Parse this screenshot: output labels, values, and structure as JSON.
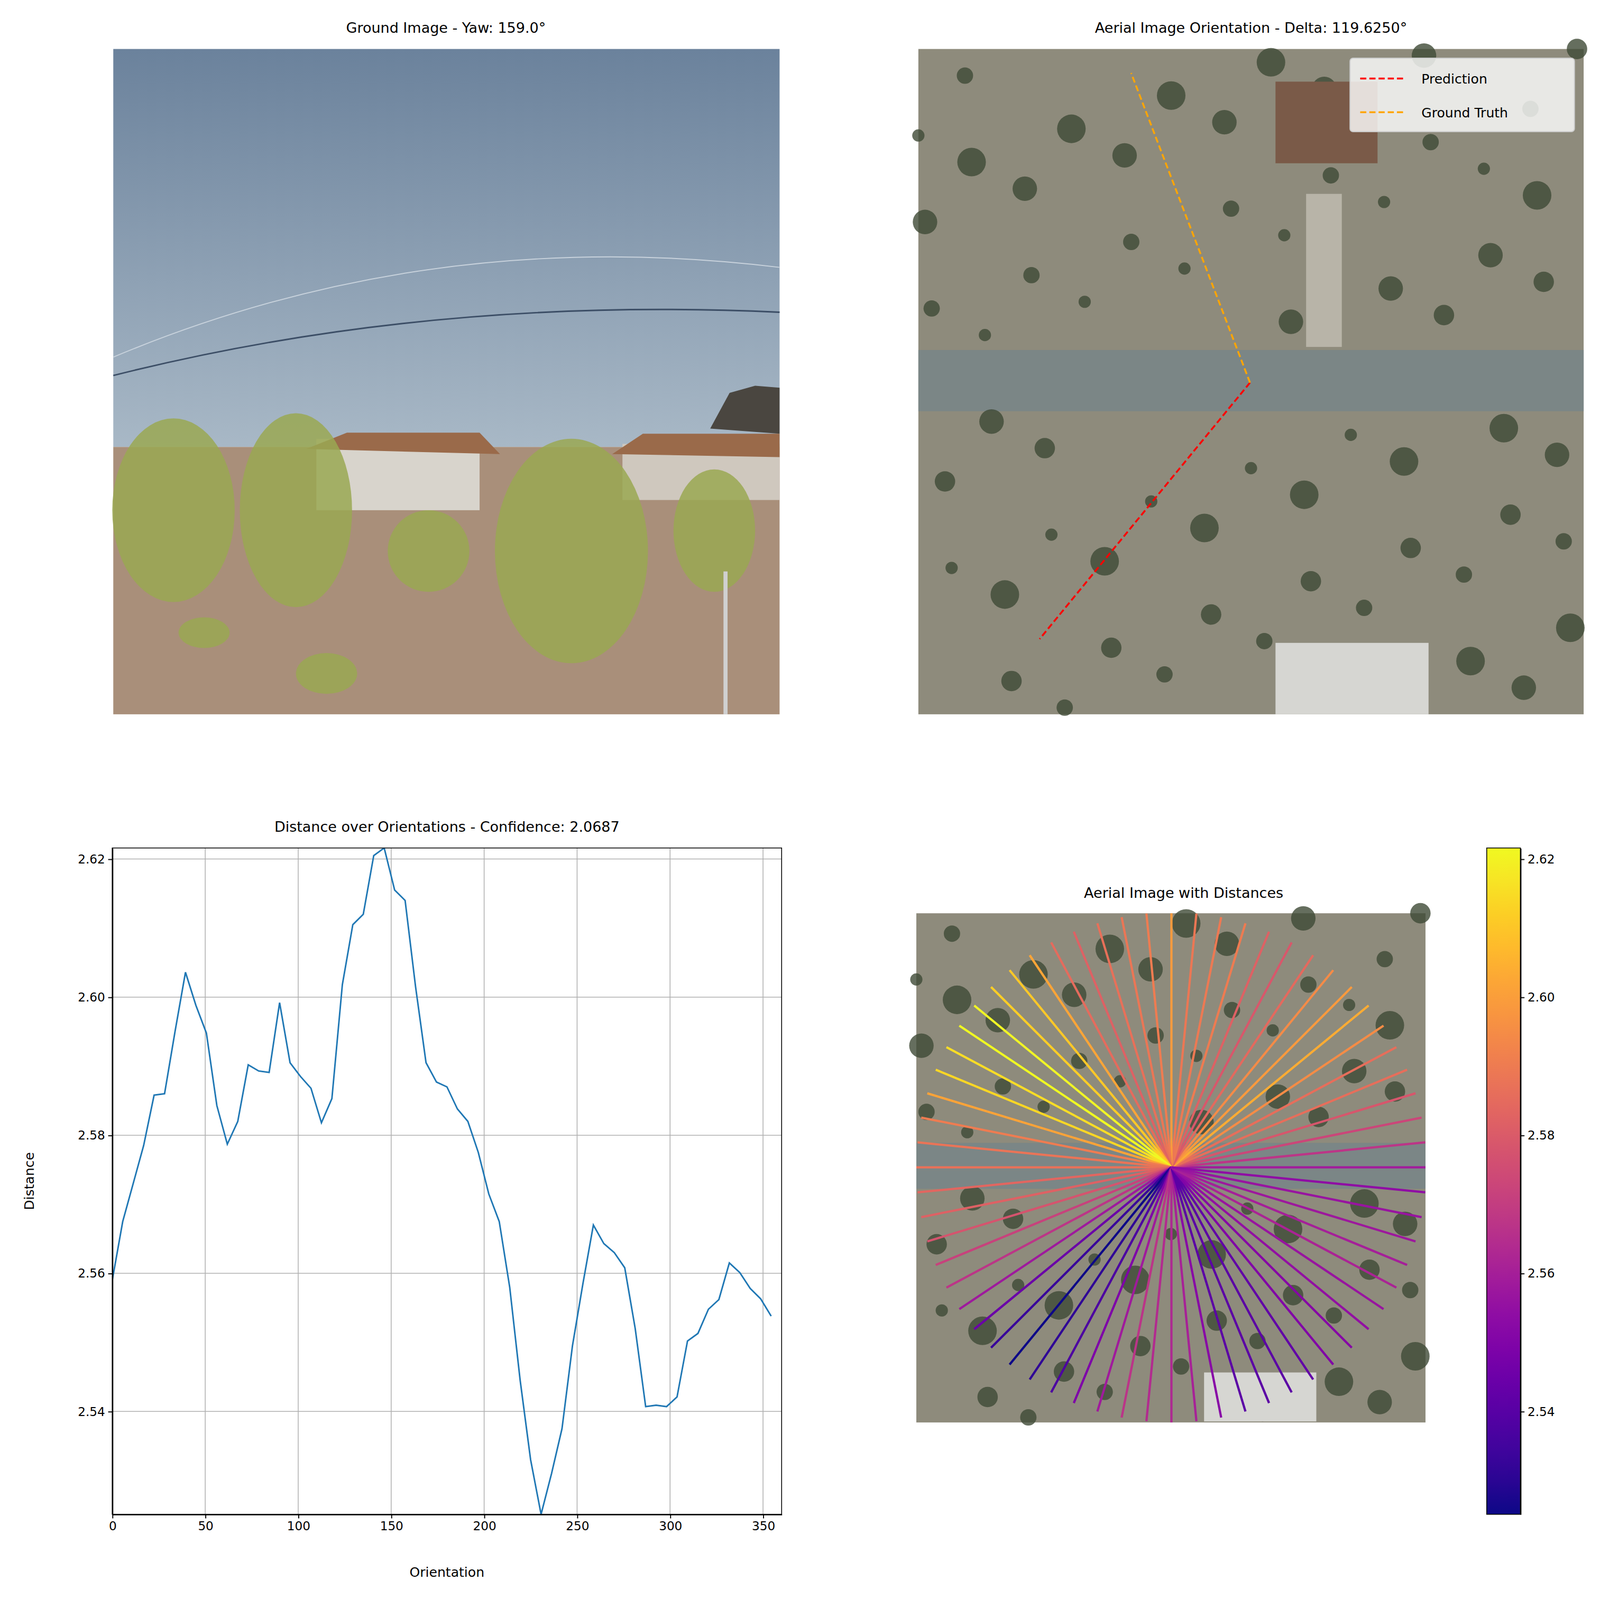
{
  "chart_data": [
    {
      "type": "image",
      "title": "Ground Image - Yaw: 159.0°"
    },
    {
      "type": "orientation",
      "title": "Aerial Image Orientation - Delta: 119.6250°",
      "legend": "upper right",
      "series": [
        {
          "name": "Prediction",
          "color": "#ff0000",
          "line_style": "dashed",
          "values": [
            230.625
          ]
        },
        {
          "name": "Ground Truth",
          "color": "#ffa500",
          "line_style": "dashed",
          "values": [
            111.0
          ]
        }
      ]
    },
    {
      "type": "line",
      "title": "Distance over Orientations - Confidence: 2.0687",
      "x_label": "Orientation",
      "y_label": "Distance",
      "color": "#1f77b4",
      "grid": true,
      "x": [
        0,
        5.625,
        11.25,
        16.875,
        22.5,
        28.125,
        33.75,
        39.375,
        45,
        50.625,
        56.25,
        61.875,
        67.5,
        73.125,
        78.75,
        84.375,
        90,
        95.625,
        101.25,
        106.875,
        112.5,
        118.125,
        123.75,
        129.375,
        135,
        140.625,
        146.25,
        151.875,
        157.5,
        163.125,
        168.75,
        174.375,
        180,
        185.625,
        191.25,
        196.875,
        202.5,
        208.125,
        213.75,
        219.375,
        225,
        230.625,
        236.25,
        241.875,
        247.5,
        253.125,
        258.75,
        264.375,
        270,
        275.625,
        281.25,
        286.875,
        292.5,
        298.125,
        303.75,
        309.375,
        315,
        320.625,
        326.25,
        331.875,
        337.5,
        343.125,
        348.75,
        354.375
      ],
      "values": [
        2.559,
        2.5675,
        2.573,
        2.5785,
        2.5858,
        2.586,
        2.595,
        2.6036,
        2.5988,
        2.5948,
        2.5843,
        2.5787,
        2.582,
        2.5902,
        2.5893,
        2.5891,
        2.5992,
        2.5905,
        2.5885,
        2.5868,
        2.5818,
        2.5853,
        2.6018,
        2.6105,
        2.612,
        2.6205,
        2.6216,
        2.6155,
        2.614,
        2.6015,
        2.5905,
        2.5877,
        2.587,
        2.5838,
        2.582,
        2.5775,
        2.5715,
        2.5675,
        2.558,
        2.5445,
        2.533,
        2.5251,
        2.531,
        2.5375,
        2.5495,
        2.5585,
        2.567,
        2.5643,
        2.563,
        2.5608,
        2.552,
        2.5407,
        2.5409,
        2.5407,
        2.5421,
        2.5502,
        2.5513,
        2.5548,
        2.5562,
        2.5615,
        2.5601,
        2.5578,
        2.5563,
        2.5538
      ],
      "xlim": [
        0,
        360
      ],
      "ylim": [
        2.5251,
        2.6216
      ],
      "xticks": [
        0,
        50,
        100,
        150,
        200,
        250,
        300,
        350
      ],
      "yticks": [
        2.54,
        2.56,
        2.58,
        {
          "value": 2.6,
          "label": "2.60"
        },
        2.62
      ]
    },
    {
      "type": "radial",
      "title": "Aerial Image with Distances",
      "colorbar": {
        "range": [
          2.5251,
          2.6216
        ],
        "ticks": [
          2.54,
          2.56,
          2.58,
          {
            "value": 2.6,
            "label": "2.60"
          },
          2.62
        ]
      }
    }
  ]
}
